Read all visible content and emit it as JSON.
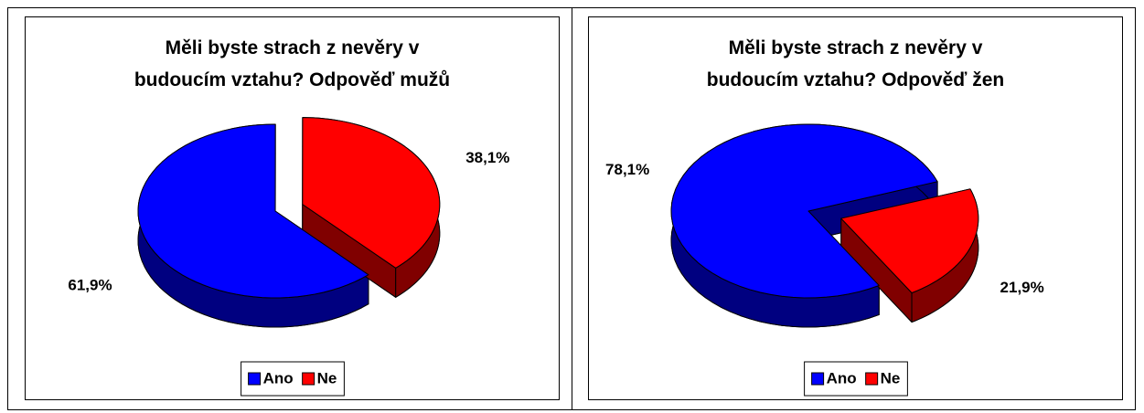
{
  "chart_data": [
    {
      "type": "pie",
      "title": "Měli byste strach z nevěry v\nbudoucím vztahu? Odpověď mužů",
      "categories": [
        "Ano",
        "Ne"
      ],
      "values": [
        61.9,
        38.1
      ],
      "value_labels": [
        "61,9%",
        "38,1%"
      ],
      "colors": [
        "#0000ff",
        "#ff0000"
      ],
      "legend": "bottom"
    },
    {
      "type": "pie",
      "title": "Měli byste strach z nevěry v\nbudoucím vztahu? Odpověď žen",
      "categories": [
        "Ano",
        "Ne"
      ],
      "values": [
        78.1,
        21.9
      ],
      "value_labels": [
        "78,1%",
        "21,9%"
      ],
      "colors": [
        "#0000ff",
        "#ff0000"
      ],
      "legend": "bottom"
    }
  ]
}
